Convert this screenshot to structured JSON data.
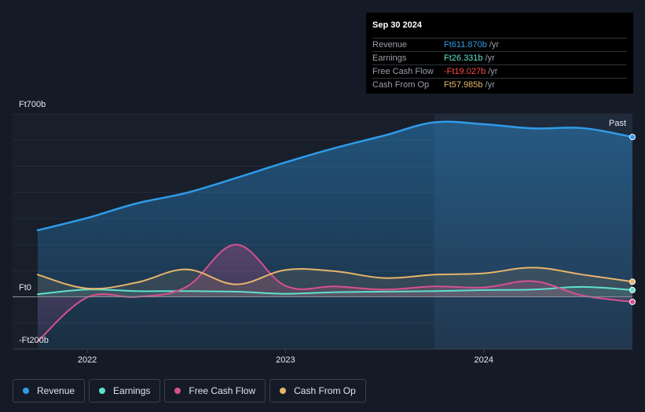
{
  "tooltip": {
    "date": "Sep 30 2024",
    "rows": [
      {
        "label": "Revenue",
        "value": "Ft611.870b",
        "unit": "/yr",
        "color": "#2f9be8"
      },
      {
        "label": "Earnings",
        "value": "Ft26.331b",
        "unit": "/yr",
        "color": "#5fe0cf"
      },
      {
        "label": "Free Cash Flow",
        "value": "-Ft19.027b",
        "unit": "/yr",
        "color": "#ff4a4a"
      },
      {
        "label": "Cash From Op",
        "value": "Ft57.985b",
        "unit": "/yr",
        "color": "#e6b46a"
      }
    ]
  },
  "legend": [
    {
      "label": "Revenue",
      "color": "#2f9be8"
    },
    {
      "label": "Earnings",
      "color": "#5fe0cf"
    },
    {
      "label": "Free Cash Flow",
      "color": "#d6508f"
    },
    {
      "label": "Cash From Op",
      "color": "#e6b46a"
    }
  ],
  "chart_data": {
    "type": "line",
    "title": "",
    "past_label": "Past",
    "y_labels": [
      "Ft700b",
      "Ft0",
      "-Ft200b"
    ],
    "ylim": [
      -200,
      700
    ],
    "xlim": [
      2021.75,
      2024.75
    ],
    "highlight_start": 2023.75,
    "x_ticks": [
      {
        "label": "2022",
        "value": 2022.0
      },
      {
        "label": "2023",
        "value": 2023.0
      },
      {
        "label": "2024",
        "value": 2024.0
      }
    ],
    "series": [
      {
        "name": "Revenue",
        "color": "#2f9be8",
        "fill": true,
        "points": [
          [
            2021.75,
            255
          ],
          [
            2022.0,
            302
          ],
          [
            2022.25,
            358
          ],
          [
            2022.5,
            398
          ],
          [
            2022.75,
            455
          ],
          [
            2023.0,
            515
          ],
          [
            2023.25,
            570
          ],
          [
            2023.5,
            618
          ],
          [
            2023.75,
            668
          ],
          [
            2024.0,
            661
          ],
          [
            2024.25,
            645
          ],
          [
            2024.5,
            646
          ],
          [
            2024.75,
            612
          ]
        ]
      },
      {
        "name": "Earnings",
        "color": "#5fe0cf",
        "fill": false,
        "points": [
          [
            2021.75,
            10
          ],
          [
            2022.0,
            28
          ],
          [
            2022.25,
            22
          ],
          [
            2022.5,
            22
          ],
          [
            2022.75,
            20
          ],
          [
            2023.0,
            12
          ],
          [
            2023.25,
            18
          ],
          [
            2023.5,
            20
          ],
          [
            2023.75,
            22
          ],
          [
            2024.0,
            26
          ],
          [
            2024.25,
            28
          ],
          [
            2024.5,
            38
          ],
          [
            2024.75,
            26
          ]
        ]
      },
      {
        "name": "Free Cash Flow",
        "color": "#d6508f",
        "fill": false,
        "points": [
          [
            2021.75,
            -170
          ],
          [
            2022.0,
            -2
          ],
          [
            2022.25,
            0
          ],
          [
            2022.5,
            38
          ],
          [
            2022.75,
            200
          ],
          [
            2023.0,
            42
          ],
          [
            2023.25,
            40
          ],
          [
            2023.5,
            28
          ],
          [
            2023.75,
            40
          ],
          [
            2024.0,
            36
          ],
          [
            2024.25,
            60
          ],
          [
            2024.5,
            5
          ],
          [
            2024.75,
            -19
          ]
        ]
      },
      {
        "name": "Cash From Op",
        "color": "#e6b46a",
        "fill": false,
        "points": [
          [
            2021.75,
            85
          ],
          [
            2022.0,
            32
          ],
          [
            2022.25,
            55
          ],
          [
            2022.5,
            105
          ],
          [
            2022.75,
            48
          ],
          [
            2023.0,
            103
          ],
          [
            2023.25,
            98
          ],
          [
            2023.5,
            72
          ],
          [
            2023.75,
            85
          ],
          [
            2024.0,
            90
          ],
          [
            2024.25,
            112
          ],
          [
            2024.5,
            85
          ],
          [
            2024.75,
            58
          ]
        ]
      }
    ]
  }
}
